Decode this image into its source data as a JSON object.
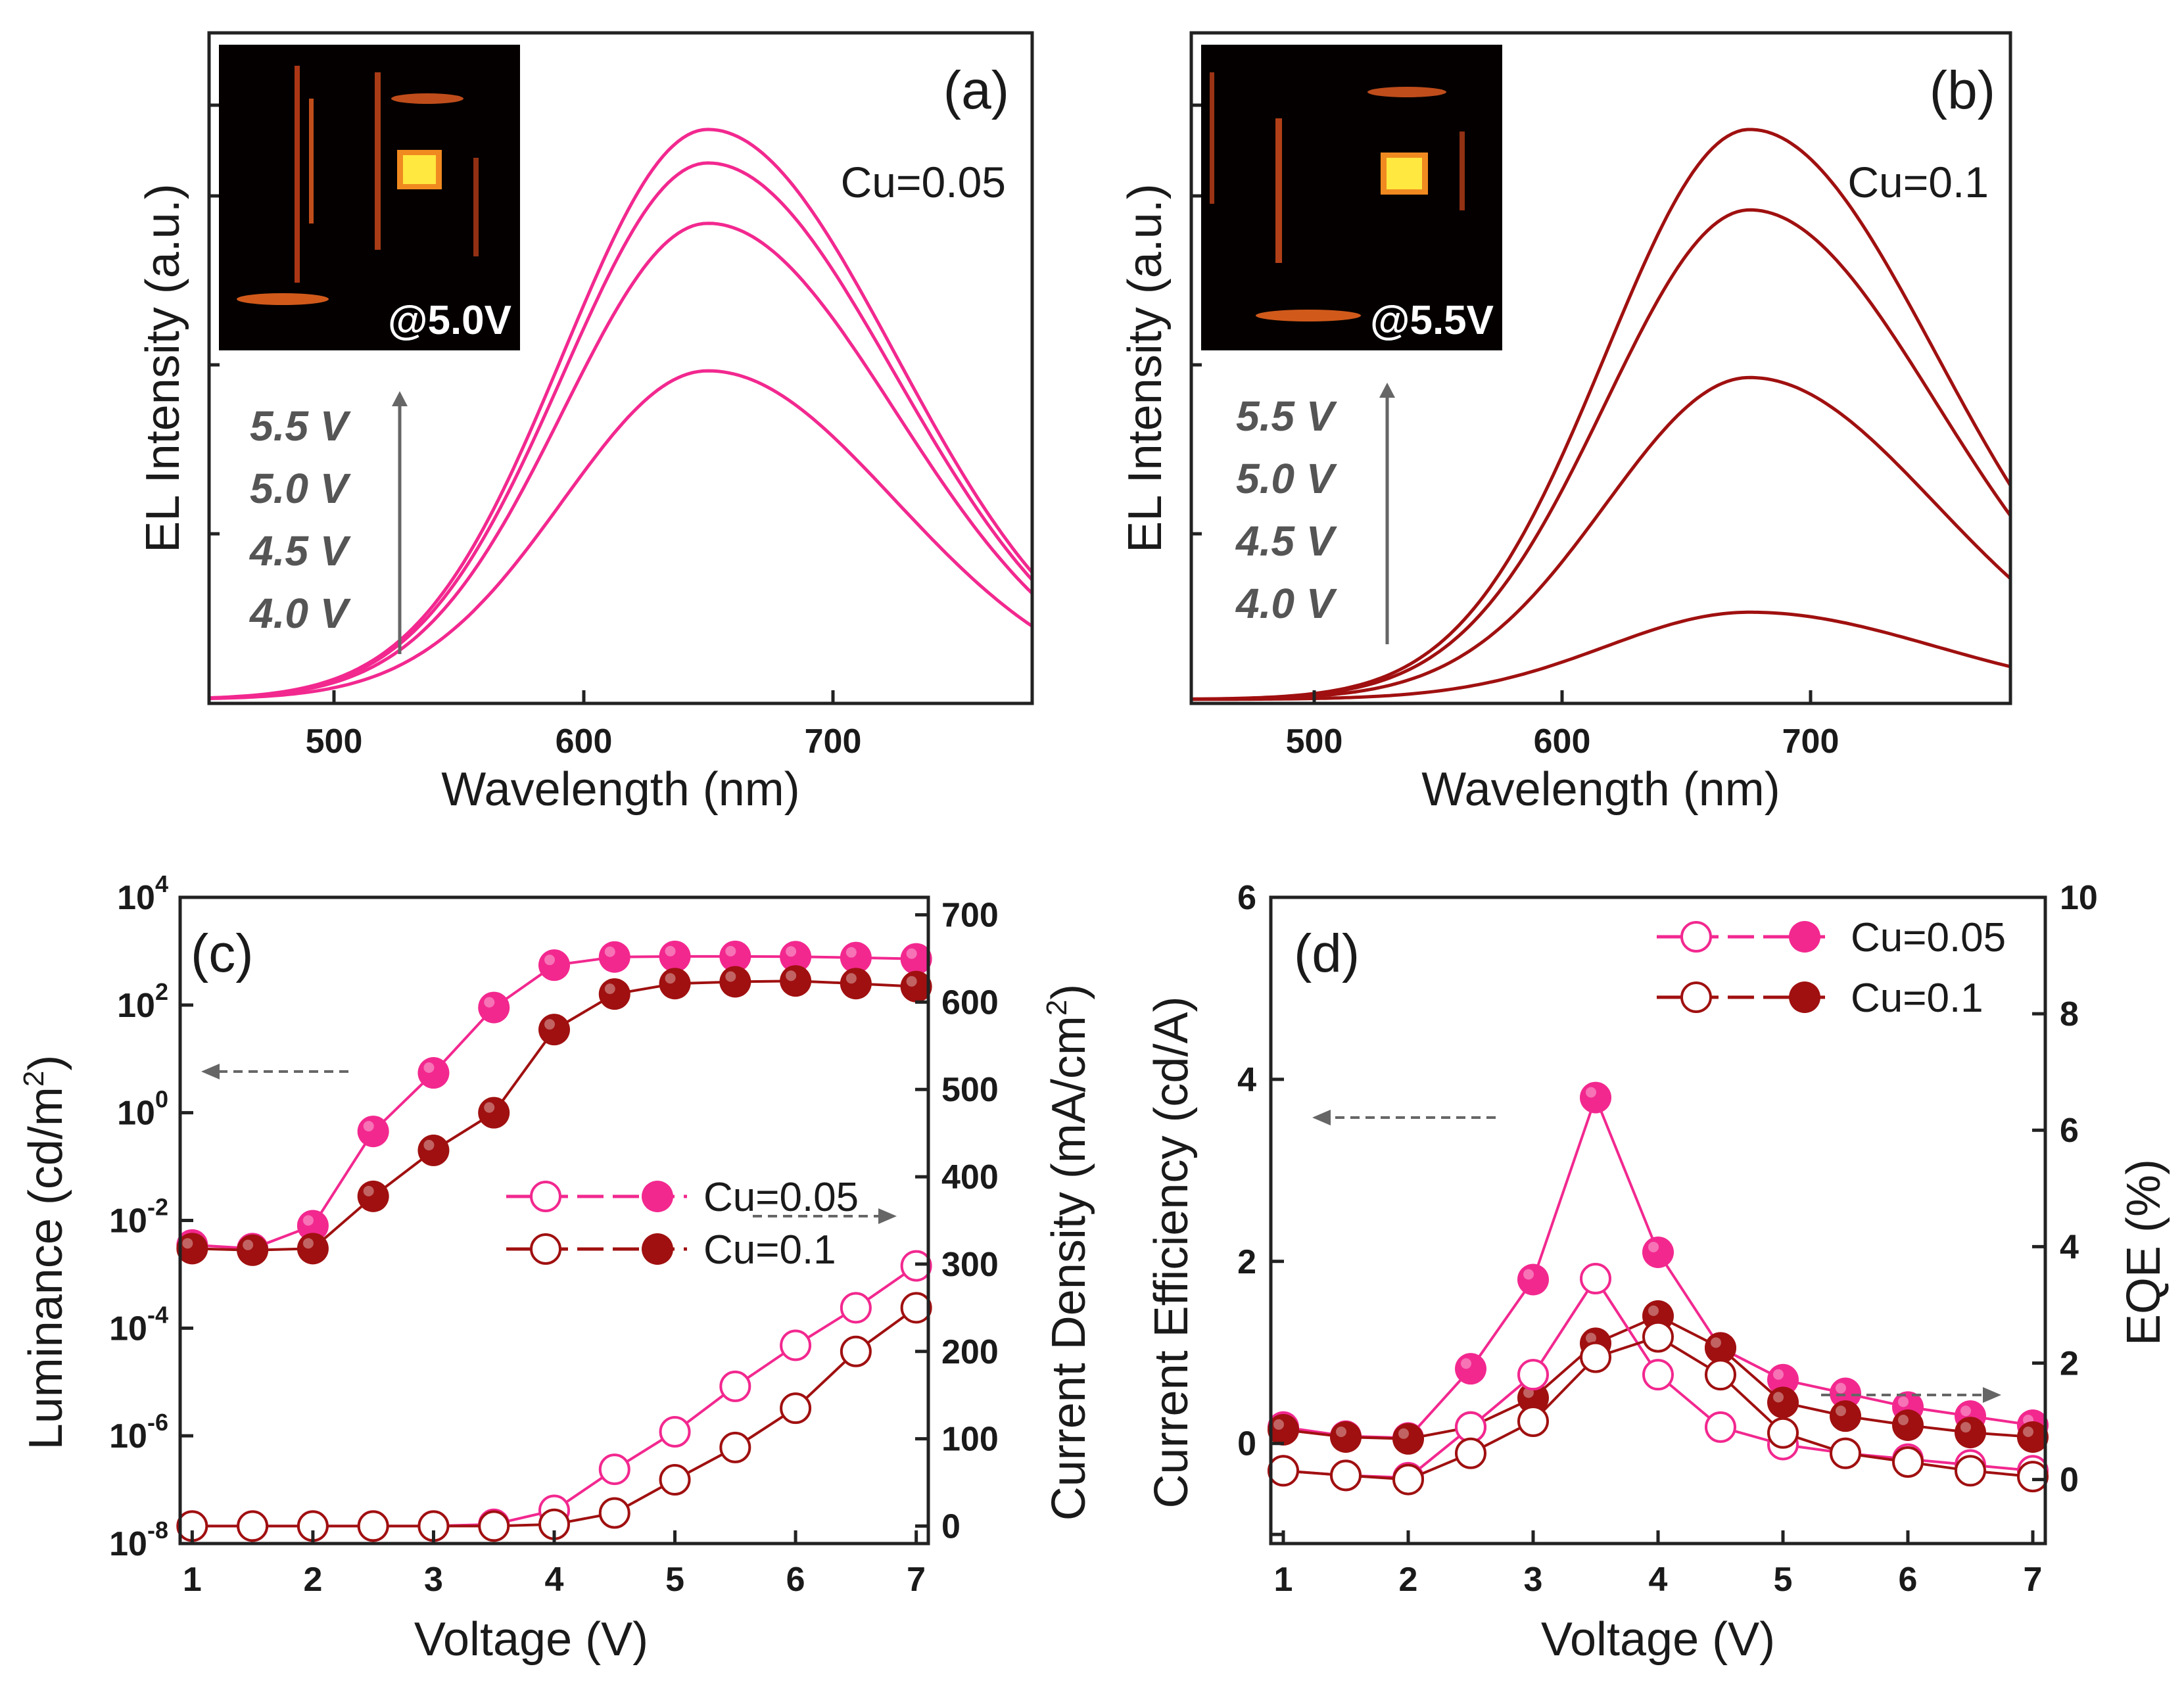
{
  "colors": {
    "pink": "#f2288f",
    "brown": "#a01010",
    "arrow": "#666666",
    "axis": "#222222"
  },
  "chart_data": [
    {
      "panel": "(a)",
      "type": "line",
      "xlabel": "Wavelength (nm)",
      "ylabel": "EL Intensity (a.u.)",
      "xlim": [
        450,
        780
      ],
      "ylim": [
        0,
        1.0
      ],
      "xticks": [
        500,
        600,
        700
      ],
      "annotation": "Cu=0.05",
      "inset_label": "@5.0V",
      "voltage_labels": [
        "5.5 V",
        "5.0 V",
        "4.5 V",
        "4.0 V"
      ],
      "peak_nm": 650,
      "sigma_left": 58,
      "sigma_right": 75,
      "series": [
        {
          "name": "5.5 V",
          "peak": 0.85
        },
        {
          "name": "5.0 V",
          "peak": 0.8
        },
        {
          "name": "4.5 V",
          "peak": 0.71
        },
        {
          "name": "4.0 V",
          "peak": 0.49
        }
      ],
      "color": "pink"
    },
    {
      "panel": "(b)",
      "type": "line",
      "xlabel": "Wavelength (nm)",
      "ylabel": "EL Intensity (a.u.)",
      "xlim": [
        450,
        780
      ],
      "ylim": [
        0,
        1.0
      ],
      "xticks": [
        500,
        600,
        700
      ],
      "annotation": "Cu=0.1",
      "inset_label": "@5.5V",
      "voltage_labels": [
        "5.5 V",
        "5.0 V",
        "4.5 V",
        "4.0 V"
      ],
      "peak_nm": 675,
      "sigma_left": 58,
      "sigma_right": 75,
      "series": [
        {
          "name": "5.5 V",
          "peak": 0.85
        },
        {
          "name": "5.0 V",
          "peak": 0.73
        },
        {
          "name": "4.5 V",
          "peak": 0.48
        },
        {
          "name": "4.0 V",
          "peak": 0.13
        }
      ],
      "color": "brown"
    },
    {
      "panel": "(c)",
      "type": "line",
      "xlabel": "Voltage (V)",
      "ylabel_left": "Luminance (cd/m2)",
      "ylabel_right": "Current Density (mA/cm2)",
      "xlim": [
        0.9,
        7.1
      ],
      "xticks": [
        1,
        2,
        3,
        4,
        5,
        6,
        7
      ],
      "ylim_left_log10": [
        -8,
        4
      ],
      "yticks_left_exp": [
        -8,
        -6,
        -4,
        -2,
        0,
        2,
        4
      ],
      "ylim_right": [
        -20,
        720
      ],
      "yticks_right": [
        0,
        100,
        200,
        300,
        400,
        500,
        600,
        700
      ],
      "x": [
        1,
        1.5,
        2,
        2.5,
        3,
        3.5,
        4,
        4.5,
        5,
        5.5,
        6,
        6.5,
        7
      ],
      "series": [
        {
          "name": "Cu=0.05",
          "axis": "left",
          "quantity": "Luminance",
          "color": "pink",
          "values": [
            0.0035,
            0.003,
            0.008,
            0.45,
            5.5,
            90,
            550,
            780,
            800,
            800,
            790,
            760,
            720
          ]
        },
        {
          "name": "Cu=0.1",
          "axis": "left",
          "quantity": "Luminance",
          "color": "brown",
          "values": [
            0.003,
            0.0028,
            0.003,
            0.028,
            0.2,
            1.0,
            35,
            160,
            250,
            270,
            280,
            250,
            220
          ]
        },
        {
          "name": "Cu=0.05",
          "axis": "right",
          "quantity": "Current Density",
          "color": "pink",
          "values": [
            0,
            0,
            0,
            0,
            0,
            2,
            18,
            65,
            108,
            160,
            207,
            250,
            298
          ]
        },
        {
          "name": "Cu=0.1",
          "axis": "right",
          "quantity": "Current Density",
          "color": "brown",
          "values": [
            0,
            0,
            0,
            0,
            0,
            0,
            2,
            15,
            53,
            90,
            135,
            200,
            250
          ]
        }
      ],
      "legend": [
        "Cu=0.05",
        "Cu=0.1"
      ]
    },
    {
      "panel": "(d)",
      "type": "line",
      "xlabel": "Voltage (V)",
      "ylabel_left": "Current Efficiency (cd/A)",
      "ylabel_right": "EQE (%)",
      "xlim": [
        0.9,
        7.1
      ],
      "xticks": [
        1,
        2,
        3,
        4,
        5,
        6,
        7
      ],
      "ylim_left": [
        -1.1,
        6
      ],
      "yticks_left": [
        0,
        2,
        4,
        6
      ],
      "ylim_right": [
        -1.1,
        10
      ],
      "yticks_right": [
        0,
        2,
        4,
        6,
        8,
        10
      ],
      "x": [
        1,
        1.5,
        2,
        2.5,
        3,
        3.5,
        4,
        4.5,
        5,
        5.5,
        6,
        6.5,
        7
      ],
      "series": [
        {
          "name": "Cu=0.05",
          "axis": "left",
          "quantity": "Current Efficiency",
          "color": "pink",
          "values": [
            0.18,
            0.08,
            0.06,
            0.82,
            1.8,
            3.8,
            2.1,
            1.05,
            0.7,
            0.55,
            0.4,
            0.3,
            0.2
          ]
        },
        {
          "name": "Cu=0.1",
          "axis": "left",
          "quantity": "Current Efficiency",
          "color": "brown",
          "values": [
            0.15,
            0.07,
            0.05,
            0.18,
            0.5,
            1.1,
            1.4,
            1.05,
            0.45,
            0.3,
            0.2,
            0.12,
            0.07
          ]
        },
        {
          "name": "Cu=0.05",
          "axis": "right",
          "quantity": "EQE",
          "color": "pink",
          "values": [
            0.15,
            0.07,
            0.03,
            0.9,
            1.8,
            3.45,
            1.8,
            0.9,
            0.6,
            0.45,
            0.35,
            0.25,
            0.15
          ]
        },
        {
          "name": "Cu=0.1",
          "axis": "right",
          "quantity": "EQE",
          "color": "brown",
          "values": [
            0.15,
            0.07,
            0.0,
            0.45,
            1.0,
            2.1,
            2.45,
            1.8,
            0.8,
            0.45,
            0.3,
            0.15,
            0.05
          ]
        }
      ],
      "legend": [
        "Cu=0.05",
        "Cu=0.1"
      ]
    }
  ]
}
